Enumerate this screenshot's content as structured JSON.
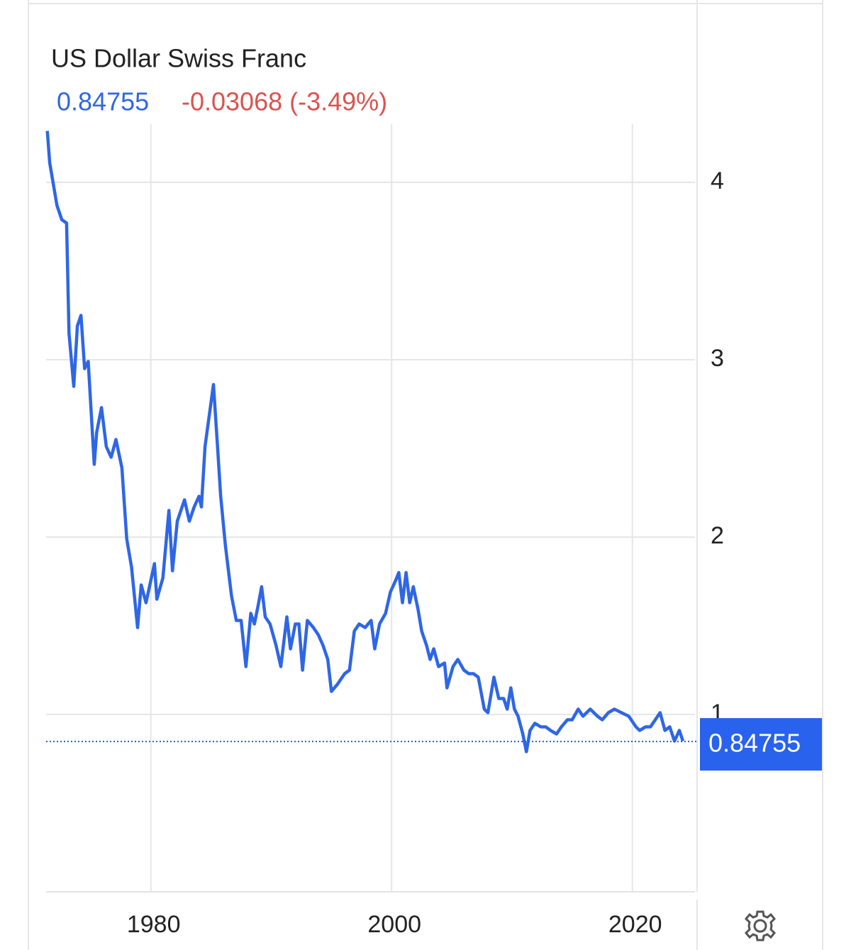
{
  "chart_data": {
    "type": "line",
    "title": "US Dollar Swiss Franc",
    "last_value": 0.84755,
    "change_label": "-0.03068 (-3.49%)",
    "xlim": [
      1971.3,
      2025.2
    ],
    "ylim": [
      0,
      5.028
    ],
    "xticks": [
      1980,
      2000,
      2020
    ],
    "yticks": [
      1,
      2,
      3,
      4
    ],
    "grid": true,
    "series": [
      {
        "name": "US Dollar Swiss Franc",
        "color": "#2f66e6",
        "x": [
          1971.4,
          1971.6,
          1971.9,
          1972.2,
          1972.6,
          1973.0,
          1973.2,
          1973.6,
          1973.9,
          1974.2,
          1974.5,
          1974.8,
          1975.3,
          1975.5,
          1975.9,
          1976.3,
          1976.7,
          1977.1,
          1977.6,
          1978.0,
          1978.4,
          1978.9,
          1979.2,
          1979.6,
          1980.3,
          1980.5,
          1981.0,
          1981.5,
          1981.8,
          1982.2,
          1982.8,
          1983.2,
          1983.6,
          1984.0,
          1984.2,
          1984.5,
          1985.2,
          1985.5,
          1985.8,
          1986.2,
          1986.7,
          1987.1,
          1987.5,
          1987.9,
          1988.3,
          1988.6,
          1988.9,
          1989.2,
          1989.5,
          1989.9,
          1990.4,
          1990.8,
          1991.3,
          1991.6,
          1992.0,
          1992.3,
          1992.6,
          1993.0,
          1993.5,
          1993.9,
          1994.3,
          1994.7,
          1995.0,
          1995.5,
          1996.1,
          1996.5,
          1996.9,
          1997.3,
          1997.8,
          1998.3,
          1998.6,
          1999.0,
          1999.5,
          1999.9,
          2000.3,
          2000.6,
          2000.9,
          2001.2,
          2001.5,
          2001.8,
          2002.2,
          2002.5,
          2002.9,
          2003.2,
          2003.5,
          2003.9,
          2004.4,
          2004.6,
          2005.1,
          2005.5,
          2006.0,
          2006.4,
          2006.8,
          2007.2,
          2007.7,
          2008.0,
          2008.5,
          2008.9,
          2009.3,
          2009.6,
          2009.9,
          2010.2,
          2010.5,
          2010.9,
          2011.2,
          2011.5,
          2011.9,
          2012.4,
          2012.8,
          2013.2,
          2013.7,
          2014.1,
          2014.6,
          2015.0,
          2015.5,
          2015.9,
          2016.5,
          2017.1,
          2017.5,
          2018.0,
          2018.5,
          2019.1,
          2019.7,
          2020.3,
          2020.6,
          2021.1,
          2021.5,
          2021.9,
          2022.3,
          2022.7,
          2023.1,
          2023.5,
          2023.9,
          2024.2
        ],
        "values": [
          4.29,
          4.11,
          3.99,
          3.87,
          3.79,
          3.77,
          3.15,
          2.85,
          3.19,
          3.25,
          2.95,
          2.99,
          2.41,
          2.59,
          2.73,
          2.51,
          2.45,
          2.55,
          2.39,
          1.99,
          1.83,
          1.49,
          1.73,
          1.63,
          1.85,
          1.65,
          1.77,
          2.15,
          1.81,
          2.09,
          2.21,
          2.09,
          2.17,
          2.23,
          2.17,
          2.51,
          2.86,
          2.55,
          2.23,
          1.95,
          1.67,
          1.53,
          1.53,
          1.27,
          1.57,
          1.51,
          1.61,
          1.72,
          1.55,
          1.51,
          1.39,
          1.27,
          1.55,
          1.37,
          1.51,
          1.51,
          1.25,
          1.53,
          1.49,
          1.45,
          1.39,
          1.31,
          1.13,
          1.17,
          1.23,
          1.25,
          1.47,
          1.51,
          1.49,
          1.53,
          1.37,
          1.51,
          1.57,
          1.69,
          1.75,
          1.8,
          1.63,
          1.8,
          1.63,
          1.72,
          1.59,
          1.47,
          1.39,
          1.31,
          1.37,
          1.27,
          1.29,
          1.15,
          1.27,
          1.31,
          1.25,
          1.23,
          1.23,
          1.21,
          1.03,
          1.01,
          1.21,
          1.09,
          1.09,
          1.03,
          1.15,
          1.03,
          0.99,
          0.89,
          0.79,
          0.91,
          0.95,
          0.93,
          0.93,
          0.91,
          0.89,
          0.93,
          0.97,
          0.97,
          1.03,
          0.99,
          1.03,
          0.99,
          0.97,
          1.01,
          1.03,
          1.01,
          0.99,
          0.93,
          0.91,
          0.93,
          0.93,
          0.97,
          1.01,
          0.91,
          0.93,
          0.85,
          0.91,
          0.85
        ]
      }
    ]
  }
}
